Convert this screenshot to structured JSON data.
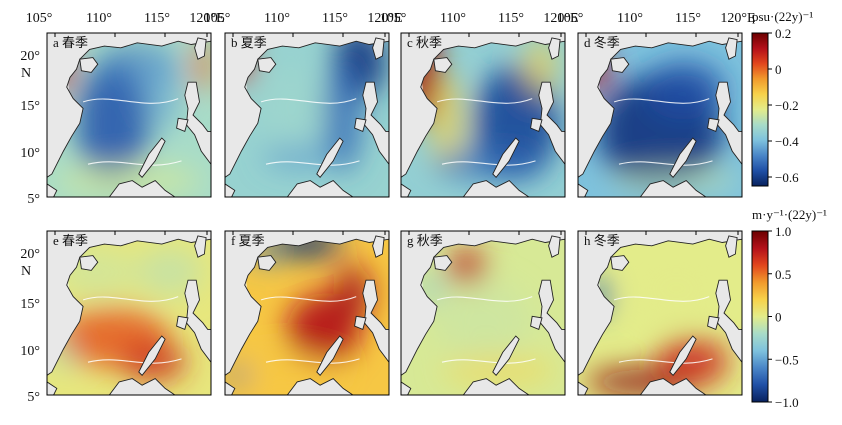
{
  "figure": {
    "lon_ticks": [
      "105°",
      "110°",
      "115°",
      "120°E"
    ],
    "lat_ticks": [
      "20°",
      "15°",
      "10°",
      "5°"
    ],
    "lat_hemisphere": "N"
  },
  "panels": [
    {
      "label": "a 春季",
      "row": 0,
      "col": 0
    },
    {
      "label": "b 夏季",
      "row": 0,
      "col": 1
    },
    {
      "label": "c 秋季",
      "row": 0,
      "col": 2
    },
    {
      "label": "d 冬季",
      "row": 0,
      "col": 3
    },
    {
      "label": "e 春季",
      "row": 1,
      "col": 0
    },
    {
      "label": "f 夏季",
      "row": 1,
      "col": 1
    },
    {
      "label": "g 秋季",
      "row": 1,
      "col": 2
    },
    {
      "label": "h 冬季",
      "row": 1,
      "col": 3
    }
  ],
  "colorbars": [
    {
      "title": "psu·(22y)⁻¹",
      "min": -0.65,
      "max": 0.2,
      "ticks": [
        "0.2",
        "0",
        "−0.2",
        "−0.4",
        "−0.6"
      ],
      "tick_values": [
        0.2,
        0,
        -0.2,
        -0.4,
        -0.6
      ]
    },
    {
      "title": "m·y⁻¹·(22y)⁻¹",
      "min": -1.0,
      "max": 1.0,
      "ticks": [
        "1.0",
        "0.5",
        "0",
        "−0.5",
        "−1.0"
      ],
      "tick_values": [
        1.0,
        0.5,
        0,
        -0.5,
        -1.0
      ]
    }
  ],
  "colors": {
    "land": "#e8e8e8",
    "contour": "#ffffff",
    "colormap": [
      "#08215e",
      "#1f4fa6",
      "#4a86c8",
      "#7ec2dd",
      "#a8dcc8",
      "#e3ec8a",
      "#f7d24a",
      "#f19a2c",
      "#e2461d",
      "#b3101a",
      "#6b0000"
    ]
  }
}
